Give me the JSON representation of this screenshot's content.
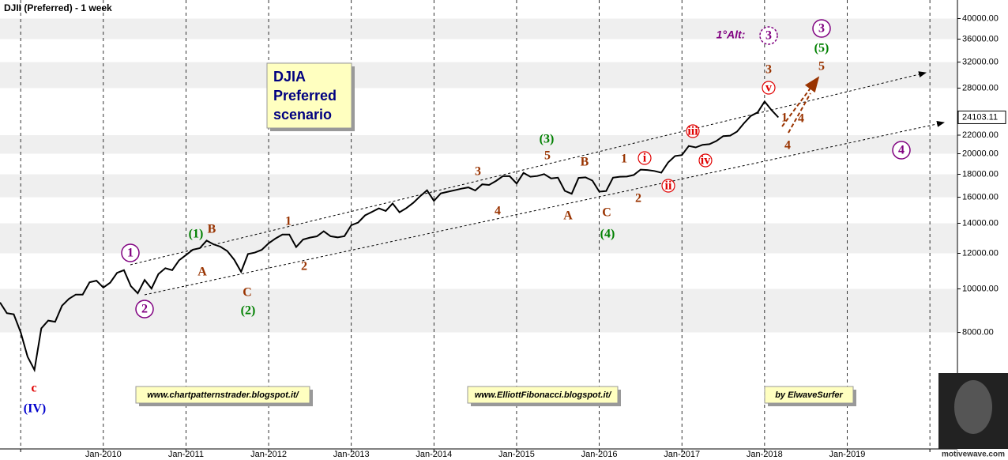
{
  "chart_data": {
    "type": "line",
    "title": "DJII (Preferred) - 1 week",
    "log_scale": true,
    "grid": true,
    "color": "#000000",
    "x": [
      "2008-10",
      "2008-11",
      "2008-12",
      "2009-01",
      "2009-02",
      "2009-03",
      "2009-04",
      "2009-05",
      "2009-06",
      "2009-07",
      "2009-08",
      "2009-09",
      "2009-10",
      "2009-11",
      "2009-12",
      "2010-01",
      "2010-02",
      "2010-03",
      "2010-04",
      "2010-05",
      "2010-06",
      "2010-07",
      "2010-08",
      "2010-09",
      "2010-10",
      "2010-11",
      "2010-12",
      "2011-01",
      "2011-02",
      "2011-03",
      "2011-04",
      "2011-05",
      "2011-06",
      "2011-07",
      "2011-08",
      "2011-09",
      "2011-10",
      "2011-11",
      "2011-12",
      "2012-01",
      "2012-02",
      "2012-03",
      "2012-04",
      "2012-05",
      "2012-06",
      "2012-07",
      "2012-08",
      "2012-09",
      "2012-10",
      "2012-11",
      "2012-12",
      "2013-01",
      "2013-02",
      "2013-03",
      "2013-04",
      "2013-05",
      "2013-06",
      "2013-07",
      "2013-08",
      "2013-09",
      "2013-10",
      "2013-11",
      "2013-12",
      "2014-01",
      "2014-02",
      "2014-03",
      "2014-04",
      "2014-05",
      "2014-06",
      "2014-07",
      "2014-08",
      "2014-09",
      "2014-10",
      "2014-11",
      "2014-12",
      "2015-01",
      "2015-02",
      "2015-03",
      "2015-04",
      "2015-05",
      "2015-06",
      "2015-07",
      "2015-08",
      "2015-09",
      "2015-10",
      "2015-11",
      "2015-12",
      "2016-01",
      "2016-02",
      "2016-03",
      "2016-04",
      "2016-05",
      "2016-06",
      "2016-07",
      "2016-08",
      "2016-09",
      "2016-10",
      "2016-11",
      "2016-12",
      "2017-01",
      "2017-02",
      "2017-03",
      "2017-04",
      "2017-05",
      "2017-06",
      "2017-07",
      "2017-08",
      "2017-09",
      "2017-10",
      "2017-11",
      "2017-12",
      "2018-01",
      "2018-02",
      "2018-03"
    ],
    "values": [
      9325,
      8829,
      8776,
      8001,
      7063,
      6600,
      8168,
      8500,
      8447,
      9172,
      9496,
      9712,
      9713,
      10344,
      10428,
      10067,
      10325,
      10857,
      11009,
      10137,
      9774,
      10466,
      10014,
      10788,
      11118,
      11006,
      11578,
      11892,
      12226,
      12320,
      12811,
      12570,
      12414,
      12143,
      11614,
      10913,
      11955,
      12046,
      12218,
      12633,
      12952,
      13212,
      13214,
      12393,
      12880,
      13009,
      13091,
      13437,
      13096,
      13026,
      13104,
      13861,
      14054,
      14579,
      14840,
      15116,
      14910,
      15500,
      14810,
      15130,
      15546,
      16086,
      16577,
      15699,
      16322,
      16458,
      16581,
      16717,
      16827,
      16563,
      17098,
      17043,
      17391,
      17828,
      17823,
      17165,
      18133,
      17776,
      17841,
      18011,
      17620,
      17690,
      16528,
      16285,
      17664,
      17720,
      17425,
      16466,
      16517,
      17685,
      17774,
      17787,
      17930,
      18432,
      18401,
      18308,
      18142,
      19124,
      19763,
      19864,
      20812,
      20663,
      20941,
      21009,
      21350,
      21891,
      21948,
      22405,
      23377,
      24272,
      24719,
      26149,
      25029,
      24103.11
    ],
    "xlim": [
      "2008-10",
      "2020-05"
    ],
    "ylim": [
      4400,
      44000
    ],
    "xticks": [
      {
        "value": "2009-01",
        "label": null
      },
      {
        "value": "2010-01",
        "label": "Jan-2010"
      },
      {
        "value": "2011-01",
        "label": "Jan-2011"
      },
      {
        "value": "2012-01",
        "label": "Jan-2012"
      },
      {
        "value": "2013-01",
        "label": "Jan-2013"
      },
      {
        "value": "2014-01",
        "label": "Jan-2014"
      },
      {
        "value": "2015-01",
        "label": "Jan-2015"
      },
      {
        "value": "2016-01",
        "label": "Jan-2016"
      },
      {
        "value": "2017-01",
        "label": "Jan-2017"
      },
      {
        "value": "2018-01",
        "label": "Jan-2018"
      },
      {
        "value": "2019-01",
        "label": "Jan-2019"
      },
      {
        "value": "2020-01",
        "label": null
      }
    ],
    "yticks": [
      {
        "value": 8000,
        "label": "8000.00"
      },
      {
        "value": 10000,
        "label": "10000.00"
      },
      {
        "value": 12000,
        "label": "12000.00"
      },
      {
        "value": 14000,
        "label": "14000.00"
      },
      {
        "value": 16000,
        "label": "16000.00"
      },
      {
        "value": 18000,
        "label": "18000.00"
      },
      {
        "value": 20000,
        "label": "20000.00"
      },
      {
        "value": 22000,
        "label": "22000.00"
      },
      {
        "value": 28000,
        "label": "28000.00"
      },
      {
        "value": 32000,
        "label": "32000.00"
      },
      {
        "value": 36000,
        "label": "36000.00"
      },
      {
        "value": 40000,
        "label": "40000.00"
      }
    ],
    "annotations": [
      "c",
      "(IV)",
      "1",
      "2",
      "(1)",
      "B",
      "A",
      "C",
      "(2)",
      "1",
      "2",
      "3",
      "4",
      "(3)",
      "5",
      "A",
      "B",
      "C",
      "(4)",
      "1",
      "2",
      "i",
      "ii",
      "iii",
      "iv",
      "v",
      "3",
      "4",
      "1",
      "4",
      "1°Alt:",
      "3",
      "3",
      "(5)",
      "5",
      "4"
    ],
    "scenario_box": [
      "DJIA",
      "Preferred",
      "scenario"
    ],
    "links": [
      "www.chartpatternstrader.blogspot.it/",
      "www.ElliottFibonacci.blogspot.it/",
      "by ElwaveSurfer"
    ],
    "watermark": "motivewave.com"
  }
}
